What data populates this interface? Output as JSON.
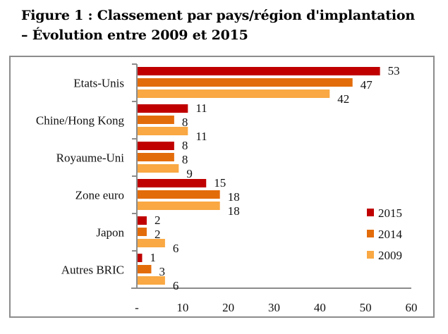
{
  "title_line1": "Figure 1 : Classement par pays/région d'implantation",
  "title_line2": "– Évolution entre 2009 et 2015",
  "chart_data": {
    "type": "bar",
    "orientation": "horizontal",
    "categories": [
      "Etats-Unis",
      "Chine/Hong Kong",
      "Royaume-Uni",
      "Zone euro",
      "Japon",
      "Autres BRIC"
    ],
    "series": [
      {
        "name": "2015",
        "color": "#C00000",
        "values": [
          53,
          11,
          8,
          15,
          2,
          1
        ]
      },
      {
        "name": "2014",
        "color": "#E36C0A",
        "values": [
          47,
          8,
          8,
          18,
          2,
          3
        ]
      },
      {
        "name": "2009",
        "color": "#F9A843",
        "values": [
          42,
          11,
          9,
          18,
          6,
          6
        ]
      }
    ],
    "xlim": [
      0,
      60
    ],
    "xticks": [
      "-",
      "10",
      "20",
      "30",
      "40",
      "50",
      "60"
    ],
    "legend": "right",
    "grid": false
  }
}
